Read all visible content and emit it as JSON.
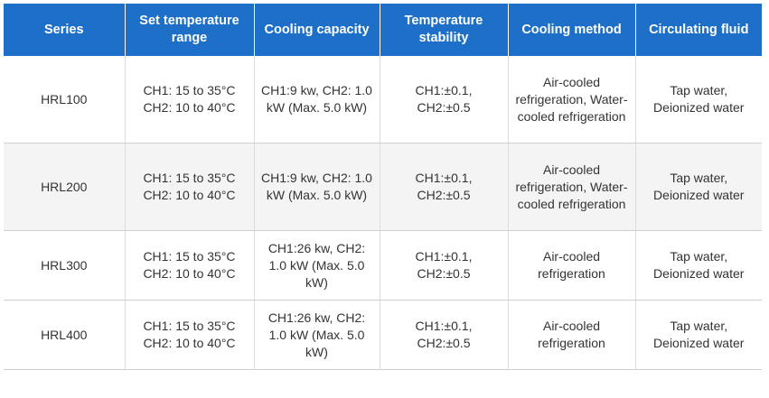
{
  "table": {
    "headers": [
      "Series",
      "Set temperature range",
      "Cooling capacity",
      "Temperature stability",
      "Cooling method",
      "Circulating fluid"
    ],
    "rows": [
      {
        "series": "HRL100",
        "temp_range": [
          "CH1: 15 to 35°C",
          "CH2: 10 to 40°C"
        ],
        "capacity": "CH1:9 kw, CH2: 1.0 kW (Max. 5.0 kW)",
        "stability": [
          "CH1:±0.1,",
          "CH2:±0.5"
        ],
        "method": "Air-cooled refrigeration, Water-cooled refrigeration",
        "fluid": "Tap water, Deionized water"
      },
      {
        "series": "HRL200",
        "temp_range": [
          "CH1: 15 to 35°C",
          "CH2: 10 to 40°C"
        ],
        "capacity": "CH1:9 kw, CH2: 1.0 kW (Max. 5.0 kW)",
        "stability": [
          "CH1:±0.1,",
          "CH2:±0.5"
        ],
        "method": "Air-cooled refrigeration, Water-cooled refrigeration",
        "fluid": "Tap water, Deionized water"
      },
      {
        "series": "HRL300",
        "temp_range": [
          "CH1: 15 to 35°C",
          "CH2: 10 to 40°C"
        ],
        "capacity": "CH1:26 kw, CH2: 1.0 kW (Max. 5.0 kW)",
        "stability": [
          "CH1:±0.1,",
          "CH2:±0.5"
        ],
        "method": "Air-cooled refrigeration",
        "fluid": "Tap water, Deionized water"
      },
      {
        "series": "HRL400",
        "temp_range": [
          "CH1: 15 to 35°C",
          "CH2: 10 to 40°C"
        ],
        "capacity": "CH1:26 kw, CH2: 1.0 kW (Max. 5.0 kW)",
        "stability": [
          "CH1:±0.1,",
          "CH2:±0.5"
        ],
        "method": "Air-cooled refrigeration",
        "fluid": "Tap water, Deionized water"
      }
    ]
  },
  "colors": {
    "header_bg": "#1e6fc7",
    "header_text": "#ffffff",
    "row_alt_bg": "#f4f4f4"
  }
}
